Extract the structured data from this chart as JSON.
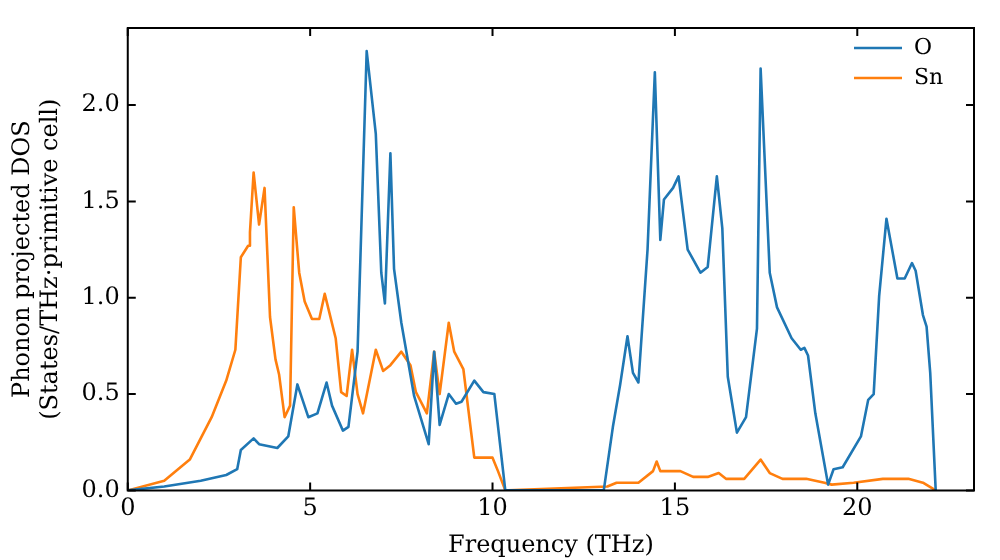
{
  "chart_data": {
    "type": "line",
    "xlabel": "Frequency (THz)",
    "ylabel": "Phonon projected DOS\n(States/THz·primitive cell)",
    "xlim": [
      0,
      23.2
    ],
    "xticks": [
      0,
      5,
      10,
      15,
      20
    ],
    "ylim": [
      0,
      2.4
    ],
    "yticks": [
      {
        "value": 0,
        "label": "0.0"
      },
      {
        "value": 0.5,
        "label": "0.5"
      },
      {
        "value": 1,
        "label": "1.0"
      },
      {
        "value": 1.5,
        "label": "1.5"
      },
      {
        "value": 2,
        "label": "2.0"
      }
    ],
    "legend": "top right",
    "grid": false,
    "marker": "none",
    "line_style": "solid",
    "series": [
      {
        "name": "O",
        "color": "#1f77b4",
        "x": [
          0,
          1,
          2,
          2.7,
          3.0,
          3.1,
          3.45,
          3.6,
          4.1,
          4.4,
          4.65,
          4.95,
          5.2,
          5.45,
          5.6,
          5.9,
          6.05,
          6.3,
          6.55,
          6.8,
          6.95,
          7.05,
          7.2,
          7.3,
          7.5,
          7.85,
          8.25,
          8.4,
          8.55,
          8.8,
          9.0,
          9.15,
          9.5,
          9.75,
          10.05,
          10.35,
          13.05,
          13.3,
          13.5,
          13.7,
          13.85,
          14.0,
          14.25,
          14.45,
          14.6,
          14.7,
          14.95,
          15.1,
          15.35,
          15.7,
          15.9,
          16.15,
          16.3,
          16.45,
          16.7,
          16.95,
          17.25,
          17.35,
          17.6,
          17.8,
          18.2,
          18.45,
          18.55,
          18.65,
          18.85,
          19.2,
          19.35,
          19.6,
          20.1,
          20.3,
          20.45,
          20.6,
          20.8,
          21.1,
          21.3,
          21.5,
          21.6,
          21.8,
          21.9,
          22.0,
          22.15
        ],
        "values": [
          0,
          0.02,
          0.05,
          0.08,
          0.11,
          0.21,
          0.27,
          0.24,
          0.22,
          0.28,
          0.55,
          0.38,
          0.4,
          0.56,
          0.44,
          0.31,
          0.33,
          0.72,
          2.28,
          1.85,
          1.13,
          0.97,
          1.75,
          1.15,
          0.87,
          0.49,
          0.24,
          0.72,
          0.34,
          0.5,
          0.45,
          0.46,
          0.57,
          0.51,
          0.5,
          0,
          0,
          0.33,
          0.55,
          0.8,
          0.61,
          0.56,
          1.25,
          2.17,
          1.3,
          1.51,
          1.57,
          1.63,
          1.25,
          1.13,
          1.16,
          1.63,
          1.36,
          0.59,
          0.3,
          0.38,
          0.84,
          2.19,
          1.13,
          0.95,
          0.79,
          0.73,
          0.74,
          0.7,
          0.4,
          0.03,
          0.11,
          0.12,
          0.28,
          0.47,
          0.5,
          1.01,
          1.41,
          1.1,
          1.1,
          1.18,
          1.14,
          0.91,
          0.85,
          0.61,
          0
        ]
      },
      {
        "name": "Sn",
        "color": "#ff7f0e",
        "x": [
          0,
          1.0,
          1.7,
          2.3,
          2.7,
          2.95,
          3.1,
          3.3,
          3.35,
          3.45,
          3.6,
          3.75,
          3.9,
          4.05,
          4.15,
          4.3,
          4.45,
          4.55,
          4.7,
          4.85,
          5.05,
          5.25,
          5.4,
          5.7,
          5.85,
          6.0,
          6.15,
          6.3,
          6.45,
          6.8,
          7.0,
          7.2,
          7.5,
          7.75,
          7.9,
          8.2,
          8.4,
          8.55,
          8.8,
          8.95,
          9.2,
          9.5,
          10.0,
          10.15,
          10.35,
          13.15,
          13.4,
          14.0,
          14.4,
          14.5,
          14.6,
          15.15,
          15.5,
          15.9,
          16.2,
          16.4,
          16.9,
          17.35,
          17.6,
          17.95,
          18.6,
          19.1,
          19.3,
          19.9,
          20.7,
          21.4,
          21.8,
          22.15
        ],
        "values": [
          0,
          0.05,
          0.16,
          0.38,
          0.57,
          0.73,
          1.21,
          1.27,
          1.34,
          1.65,
          1.38,
          1.57,
          0.9,
          0.68,
          0.6,
          0.38,
          0.44,
          1.47,
          1.13,
          0.98,
          0.89,
          0.89,
          1.02,
          0.79,
          0.51,
          0.49,
          0.73,
          0.5,
          0.4,
          0.73,
          0.62,
          0.65,
          0.72,
          0.65,
          0.51,
          0.4,
          0.72,
          0.5,
          0.87,
          0.72,
          0.63,
          0.17,
          0.17,
          0.1,
          0,
          0.02,
          0.04,
          0.04,
          0.1,
          0.15,
          0.1,
          0.1,
          0.07,
          0.07,
          0.09,
          0.06,
          0.06,
          0.16,
          0.09,
          0.06,
          0.06,
          0.04,
          0.03,
          0.04,
          0.06,
          0.06,
          0.04,
          0
        ]
      }
    ]
  }
}
